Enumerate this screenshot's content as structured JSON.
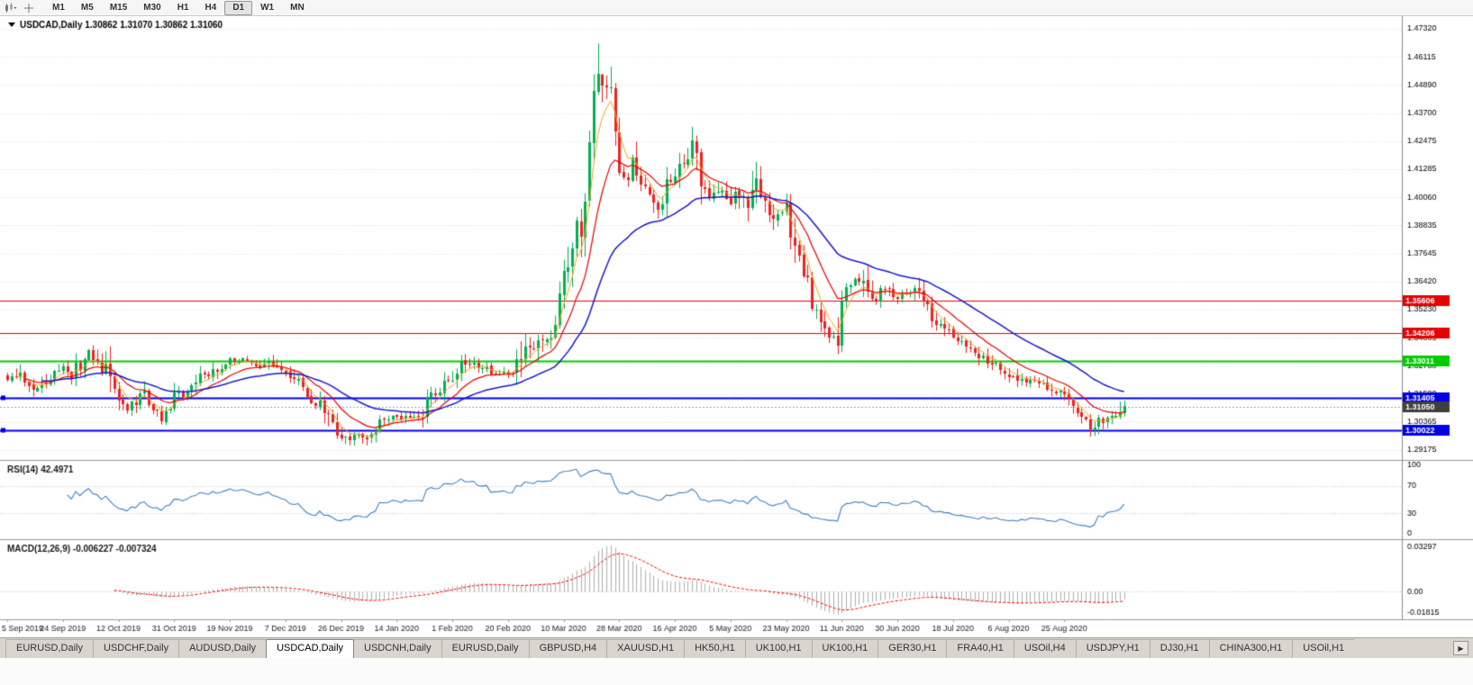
{
  "toolbar": {
    "timeframes": [
      {
        "label": "M1",
        "active": false
      },
      {
        "label": "M5",
        "active": false
      },
      {
        "label": "M15",
        "active": false
      },
      {
        "label": "M30",
        "active": false
      },
      {
        "label": "H1",
        "active": false
      },
      {
        "label": "H4",
        "active": false
      },
      {
        "label": "D1",
        "active": true
      },
      {
        "label": "W1",
        "active": false
      },
      {
        "label": "MN",
        "active": false
      }
    ]
  },
  "chart": {
    "symbol_title": "USDCAD,Daily",
    "ohlc_text": "1.30862 1.31070 1.30862 1.31060",
    "price_scale_ticks": [
      "1.47320",
      "1.46115",
      "1.44890",
      "1.43700",
      "1.42475",
      "1.41285",
      "1.40060",
      "1.38835",
      "1.37645",
      "1.36420",
      "1.35230",
      "1.34005",
      "1.32780",
      "1.31590",
      "1.30365",
      "1.29175"
    ],
    "hlines": [
      {
        "price": 1.35606,
        "label": "1.35606",
        "color": "#e60000",
        "width": 1
      },
      {
        "price": 1.34206,
        "label": "1.34206",
        "color": "#e60000",
        "width": 1
      },
      {
        "price": 1.33011,
        "label": "1.33011",
        "color": "#00cc00",
        "width": 2
      },
      {
        "price": 1.31405,
        "label": "1.31405",
        "color": "#0000e6",
        "width": 2
      },
      {
        "price": 1.30022,
        "label": "1.30022",
        "color": "#0000e6",
        "width": 2
      }
    ],
    "current_price": {
      "label": "1.31050",
      "value": 1.3105,
      "box_color": "#3f3f3f",
      "line_color": "#a0a0a0"
    },
    "date_labels": [
      "5 Sep 2019",
      "24 Sep 2019",
      "12 Oct 2019",
      "31 Oct 2019",
      "19 Nov 2019",
      "7 Dec 2019",
      "26 Dec 2019",
      "14 Jan 2020",
      "1 Feb 2020",
      "20 Feb 2020",
      "10 Mar 2020",
      "28 Mar 2020",
      "16 Apr 2020",
      "5 May 2020",
      "23 May 2020",
      "11 Jun 2020",
      "30 Jun 2020",
      "18 Jul 2020",
      "6 Aug 2020",
      "25 Aug 2020"
    ],
    "colors": {
      "up": "#00b050",
      "down": "#f02020",
      "grid": "#dedede",
      "axis_line": "#8a8a8a",
      "text": "#1a1a1a"
    }
  },
  "rsi_panel": {
    "label": "RSI(14) 42.4971",
    "period": 14,
    "value": 42.4971,
    "scale_labels": [
      "100",
      "70",
      "30",
      "0"
    ],
    "levels": [
      70,
      30
    ],
    "line_color": "#3f7fc1"
  },
  "macd_panel": {
    "label": "MACD(12,26,9) -0.006227 -0.007324",
    "params": [
      12,
      26,
      9
    ],
    "values": [
      -0.006227,
      -0.007324
    ],
    "scale_labels": [
      "0.03297",
      "0.00",
      "-0.01815"
    ],
    "histogram_color": "#aeaeae",
    "signal_color": "#ff0000"
  },
  "chart_data": {
    "type": "candlestick",
    "symbol": "USDCAD",
    "timeframe": "Daily",
    "title": "USDCAD,Daily 1.30862 1.31070 1.30862 1.31060",
    "bars": 262,
    "bars_per_date_label": 13,
    "x_axis_dates": [
      "5 Sep 2019",
      "24 Sep 2019",
      "12 Oct 2019",
      "31 Oct 2019",
      "19 Nov 2019",
      "7 Dec 2019",
      "26 Dec 2019",
      "14 Jan 2020",
      "1 Feb 2020",
      "20 Feb 2020",
      "10 Mar 2020",
      "28 Mar 2020",
      "16 Apr 2020",
      "5 May 2020",
      "23 May 2020",
      "11 Jun 2020",
      "30 Jun 2020",
      "18 Jul 2020",
      "6 Aug 2020",
      "25 Aug 2020"
    ],
    "price_axis_range": [
      1.29175,
      1.4732
    ],
    "horizontal_levels": [
      1.35606,
      1.34206,
      1.33011,
      1.31405,
      1.30022
    ],
    "current_bid": 1.3105,
    "close_anchors": [
      [
        0,
        1.322
      ],
      [
        2,
        1.3245
      ],
      [
        4,
        1.32
      ],
      [
        6,
        1.3175
      ],
      [
        8,
        1.319
      ],
      [
        10,
        1.323
      ],
      [
        13,
        1.3265
      ],
      [
        15,
        1.324
      ],
      [
        17,
        1.329
      ],
      [
        19,
        1.333
      ],
      [
        21,
        1.331
      ],
      [
        23,
        1.325
      ],
      [
        25,
        1.316
      ],
      [
        26,
        1.312
      ],
      [
        28,
        1.3095
      ],
      [
        30,
        1.313
      ],
      [
        32,
        1.316
      ],
      [
        34,
        1.3105
      ],
      [
        36,
        1.3065
      ],
      [
        38,
        1.309
      ],
      [
        39,
        1.314
      ],
      [
        41,
        1.316
      ],
      [
        43,
        1.3175
      ],
      [
        45,
        1.323
      ],
      [
        47,
        1.3245
      ],
      [
        49,
        1.327
      ],
      [
        52,
        1.331
      ],
      [
        55,
        1.33
      ],
      [
        58,
        1.328
      ],
      [
        61,
        1.33
      ],
      [
        63,
        1.326
      ],
      [
        65,
        1.325
      ],
      [
        67,
        1.323
      ],
      [
        69,
        1.3165
      ],
      [
        71,
        1.313
      ],
      [
        73,
        1.311
      ],
      [
        74,
        1.308
      ],
      [
        76,
        1.302
      ],
      [
        78,
        1.2985
      ],
      [
        80,
        1.296
      ],
      [
        82,
        1.299
      ],
      [
        84,
        1.2975
      ],
      [
        87,
        1.303
      ],
      [
        89,
        1.306
      ],
      [
        91,
        1.3065
      ],
      [
        94,
        1.305
      ],
      [
        97,
        1.3075
      ],
      [
        99,
        1.314
      ],
      [
        101,
        1.318
      ],
      [
        104,
        1.323
      ],
      [
        107,
        1.33
      ],
      [
        110,
        1.328
      ],
      [
        113,
        1.3255
      ],
      [
        117,
        1.324
      ],
      [
        119,
        1.329
      ],
      [
        121,
        1.339
      ],
      [
        123,
        1.333
      ],
      [
        125,
        1.34
      ],
      [
        127,
        1.343
      ],
      [
        129,
        1.354
      ],
      [
        130,
        1.366
      ],
      [
        131,
        1.374
      ],
      [
        133,
        1.393
      ],
      [
        134,
        1.38
      ],
      [
        135,
        1.4
      ],
      [
        136,
        1.425
      ],
      [
        137,
        1.45
      ],
      [
        138,
        1.456
      ],
      [
        139,
        1.445
      ],
      [
        140,
        1.449
      ],
      [
        141,
        1.448
      ],
      [
        143,
        1.408
      ],
      [
        145,
        1.41
      ],
      [
        146,
        1.415
      ],
      [
        148,
        1.406
      ],
      [
        150,
        1.401
      ],
      [
        152,
        1.392
      ],
      [
        154,
        1.405
      ],
      [
        156,
        1.409
      ],
      [
        159,
        1.418
      ],
      [
        160,
        1.4215
      ],
      [
        162,
        1.408
      ],
      [
        164,
        1.399
      ],
      [
        166,
        1.405
      ],
      [
        169,
        1.398
      ],
      [
        171,
        1.403
      ],
      [
        173,
        1.394
      ],
      [
        175,
        1.406
      ],
      [
        177,
        1.4
      ],
      [
        179,
        1.392
      ],
      [
        182,
        1.395
      ],
      [
        184,
        1.378
      ],
      [
        186,
        1.369
      ],
      [
        188,
        1.356
      ],
      [
        190,
        1.346
      ],
      [
        192,
        1.342
      ],
      [
        194,
        1.3395
      ],
      [
        196,
        1.362
      ],
      [
        199,
        1.366
      ],
      [
        202,
        1.356
      ],
      [
        205,
        1.362
      ],
      [
        208,
        1.358
      ],
      [
        212,
        1.36
      ],
      [
        215,
        1.352
      ],
      [
        218,
        1.345
      ],
      [
        221,
        1.34
      ],
      [
        224,
        1.338
      ],
      [
        227,
        1.333
      ],
      [
        230,
        1.329
      ],
      [
        234,
        1.325
      ],
      [
        237,
        1.322
      ],
      [
        240,
        1.3205
      ],
      [
        243,
        1.3185
      ],
      [
        246,
        1.316
      ],
      [
        249,
        1.313
      ],
      [
        251,
        1.307
      ],
      [
        253,
        1.301
      ],
      [
        255,
        1.3035
      ],
      [
        257,
        1.3075
      ],
      [
        259,
        1.3055
      ],
      [
        261,
        1.3106
      ]
    ],
    "extreme_overrides": {
      "high": [
        [
          138,
          1.4669
        ]
      ],
      "low": [
        [
          80,
          1.2949
        ],
        [
          253,
          1.2994
        ]
      ]
    },
    "moving_averages": [
      {
        "name": "fast",
        "type": "ema",
        "period": 5,
        "color": "#f2a71b"
      },
      {
        "name": "mid",
        "type": "ema",
        "period": 13,
        "color": "#e60000"
      },
      {
        "name": "slow",
        "type": "ema",
        "period": 34,
        "color": "#1a1acd"
      }
    ]
  },
  "tabs": {
    "items": [
      {
        "label": "EURUSD,Daily",
        "active": false
      },
      {
        "label": "USDCHF,Daily",
        "active": false
      },
      {
        "label": "AUDUSD,Daily",
        "active": false
      },
      {
        "label": "USDCAD,Daily",
        "active": true
      },
      {
        "label": "USDCNH,Daily",
        "active": false
      },
      {
        "label": "EURUSD,Daily",
        "active": false
      },
      {
        "label": "GBPUSD,H4",
        "active": false
      },
      {
        "label": "XAUUSD,H1",
        "active": false
      },
      {
        "label": "HK50,H1",
        "active": false
      },
      {
        "label": "UK100,H1",
        "active": false
      },
      {
        "label": "UK100,H1",
        "active": false
      },
      {
        "label": "GER30,H1",
        "active": false
      },
      {
        "label": "FRA40,H1",
        "active": false
      },
      {
        "label": "USOil,H4",
        "active": false
      },
      {
        "label": "USDJPY,H1",
        "active": false
      },
      {
        "label": "DJ30,H1",
        "active": false
      },
      {
        "label": "CHINA300,H1",
        "active": false
      },
      {
        "label": "USOil,H1",
        "active": false
      }
    ],
    "scroll_right_glyph": "▶"
  }
}
